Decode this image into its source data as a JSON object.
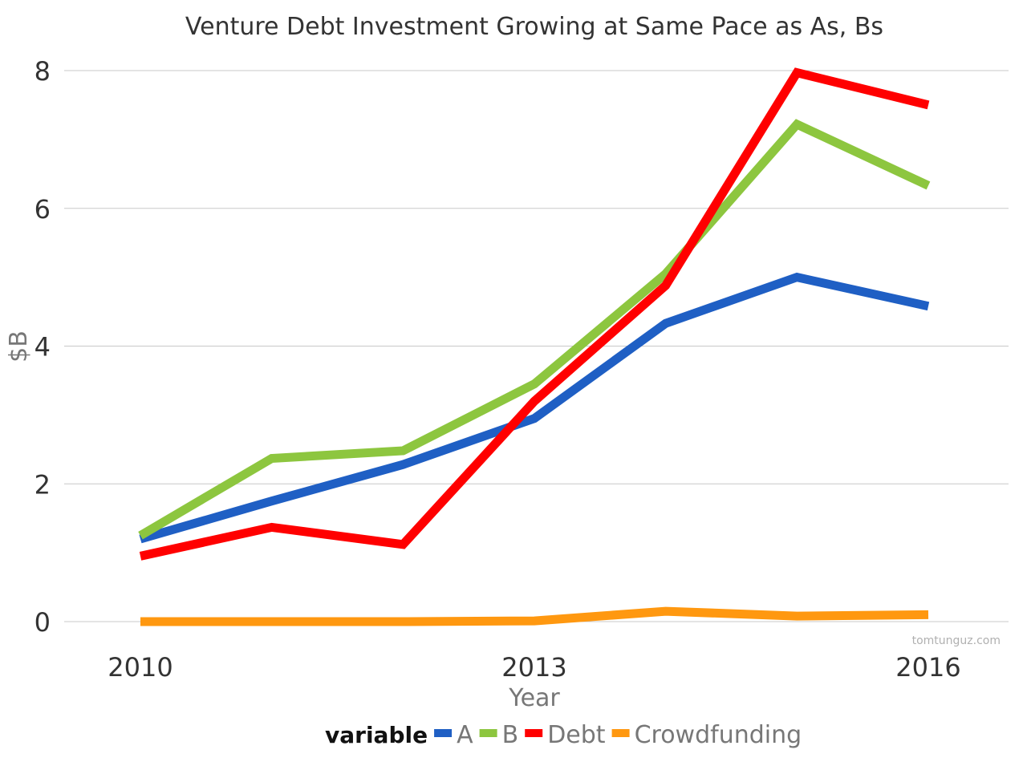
{
  "chart_data": {
    "type": "line",
    "title": "Venture Debt Investment Growing at Same Pace as As, Bs",
    "xlabel": "Year",
    "ylabel": "$B",
    "x": [
      2010,
      2011,
      2012,
      2013,
      2014,
      2015,
      2016
    ],
    "xticks": [
      "2010",
      "2013",
      "2016"
    ],
    "yticks": [
      "0",
      "2",
      "4",
      "6",
      "8"
    ],
    "xlim": [
      2010,
      2016
    ],
    "ylim": [
      0,
      8
    ],
    "grid": "horizontal",
    "legend_title": "variable",
    "legend_position": "bottom",
    "series": [
      {
        "name": "A",
        "color": "#1f5fc4",
        "values": [
          1.2,
          1.75,
          2.28,
          2.95,
          4.33,
          5.0,
          4.58
        ]
      },
      {
        "name": "B",
        "color": "#8dc63f",
        "values": [
          1.25,
          2.37,
          2.48,
          3.45,
          5.05,
          7.22,
          6.33
        ]
      },
      {
        "name": "Debt",
        "color": "#ff0000",
        "values": [
          0.95,
          1.37,
          1.12,
          3.2,
          4.88,
          7.97,
          7.5
        ]
      },
      {
        "name": "Crowdfunding",
        "color": "#ff9810",
        "values": [
          0.0,
          0.0,
          0.0,
          0.01,
          0.15,
          0.08,
          0.1
        ]
      }
    ],
    "watermark": "tomtunguz.com"
  }
}
